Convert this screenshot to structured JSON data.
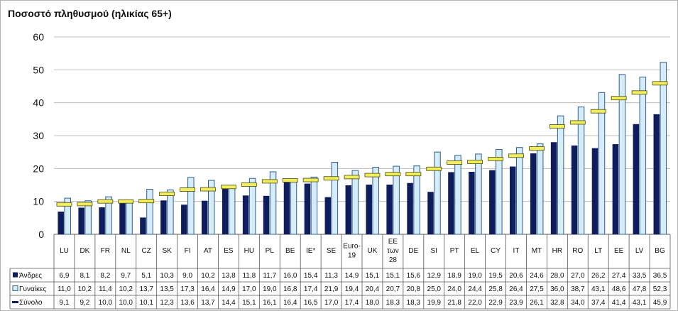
{
  "title": "Ποσοστό πληθυσμού (ηλικίας 65+)",
  "colors": {
    "men": "#0f1d5c",
    "women": "#d6ecf9",
    "women_border": "#2f5f8f",
    "total": "#f0ee5c",
    "total_border": "#4a4a10"
  },
  "chart_data": {
    "type": "bar",
    "title": "Ποσοστό πληθυσμού (ηλικίας 65+)",
    "xlabel": "",
    "ylabel": "",
    "ylim": [
      0,
      60
    ],
    "yticks": [
      0,
      10,
      20,
      30,
      40,
      50,
      60
    ],
    "grid": true,
    "legend": "data-table-rows",
    "categories": [
      "LU",
      "DK",
      "FR",
      "NL",
      "CZ",
      "SK",
      "FI",
      "AT",
      "ES",
      "HU",
      "PL",
      "BE",
      "IE*",
      "SE",
      "Euro-19",
      "UK",
      "ΕΕ των 28",
      "DE",
      "SI",
      "PT",
      "EL",
      "CY",
      "IT",
      "MT",
      "HR",
      "RO",
      "LT",
      "EE",
      "LV",
      "BG"
    ],
    "series": [
      {
        "name": "Άνδρες",
        "kind": "bar",
        "values": [
          6.9,
          8.1,
          8.2,
          9.7,
          5.1,
          10.3,
          9.0,
          10.2,
          13.8,
          11.8,
          11.7,
          16.0,
          15.4,
          11.3,
          14.9,
          15.1,
          15.1,
          15.6,
          12.9,
          18.9,
          19.0,
          19.5,
          20.6,
          24.6,
          28.0,
          27.0,
          26.2,
          27.4,
          33.5,
          36.5
        ],
        "labels": [
          "6,9",
          "8,1",
          "8,2",
          "9,7",
          "5,1",
          "10,3",
          "9,0",
          "10,2",
          "13,8",
          "11,8",
          "11,7",
          "16,0",
          "15,4",
          "11,3",
          "14,9",
          "15,1",
          "15,1",
          "15,6",
          "12,9",
          "18,9",
          "19,0",
          "19,5",
          "20,6",
          "24,6",
          "28,0",
          "27,0",
          "26,2",
          "27,4",
          "33,5",
          "36,5"
        ]
      },
      {
        "name": "Γυναίκες",
        "kind": "bar",
        "values": [
          11.0,
          10.2,
          11.4,
          10.2,
          13.7,
          13.5,
          17.3,
          16.4,
          14.9,
          17.0,
          19.0,
          16.8,
          17.4,
          21.9,
          19.4,
          20.4,
          20.7,
          20.8,
          25.0,
          24.0,
          24.4,
          25.8,
          26.4,
          27.5,
          36.0,
          38.7,
          43.1,
          48.6,
          47.8,
          52.3
        ],
        "labels": [
          "11,0",
          "10,2",
          "11,4",
          "10,2",
          "13,7",
          "13,5",
          "17,3",
          "16,4",
          "14,9",
          "17,0",
          "19,0",
          "16,8",
          "17,4",
          "21,9",
          "19,4",
          "20,4",
          "20,7",
          "20,8",
          "25,0",
          "24,0",
          "24,4",
          "25,8",
          "26,4",
          "27,5",
          "36,0",
          "38,7",
          "43,1",
          "48,6",
          "47,8",
          "52,3"
        ]
      },
      {
        "name": "Σύνολο",
        "kind": "marker",
        "values": [
          9.1,
          9.2,
          10.0,
          10.0,
          10.1,
          12.3,
          13.6,
          13.7,
          14.4,
          15.1,
          16.1,
          16.4,
          16.5,
          17.0,
          17.4,
          18.0,
          18.3,
          18.3,
          19.9,
          21.8,
          22.0,
          22.9,
          23.9,
          26.1,
          32.8,
          34.0,
          37.4,
          41.4,
          43.1,
          45.9
        ],
        "labels": [
          "9,1",
          "9,2",
          "10,0",
          "10,0",
          "10,1",
          "12,3",
          "13,6",
          "13,7",
          "14,4",
          "15,1",
          "16,1",
          "16,4",
          "16,5",
          "17,0",
          "17,4",
          "18,0",
          "18,3",
          "18,3",
          "19,9",
          "21,8",
          "22,0",
          "22,9",
          "23,9",
          "26,1",
          "32,8",
          "34,0",
          "37,4",
          "41,4",
          "43,1",
          "45,9"
        ]
      }
    ]
  }
}
